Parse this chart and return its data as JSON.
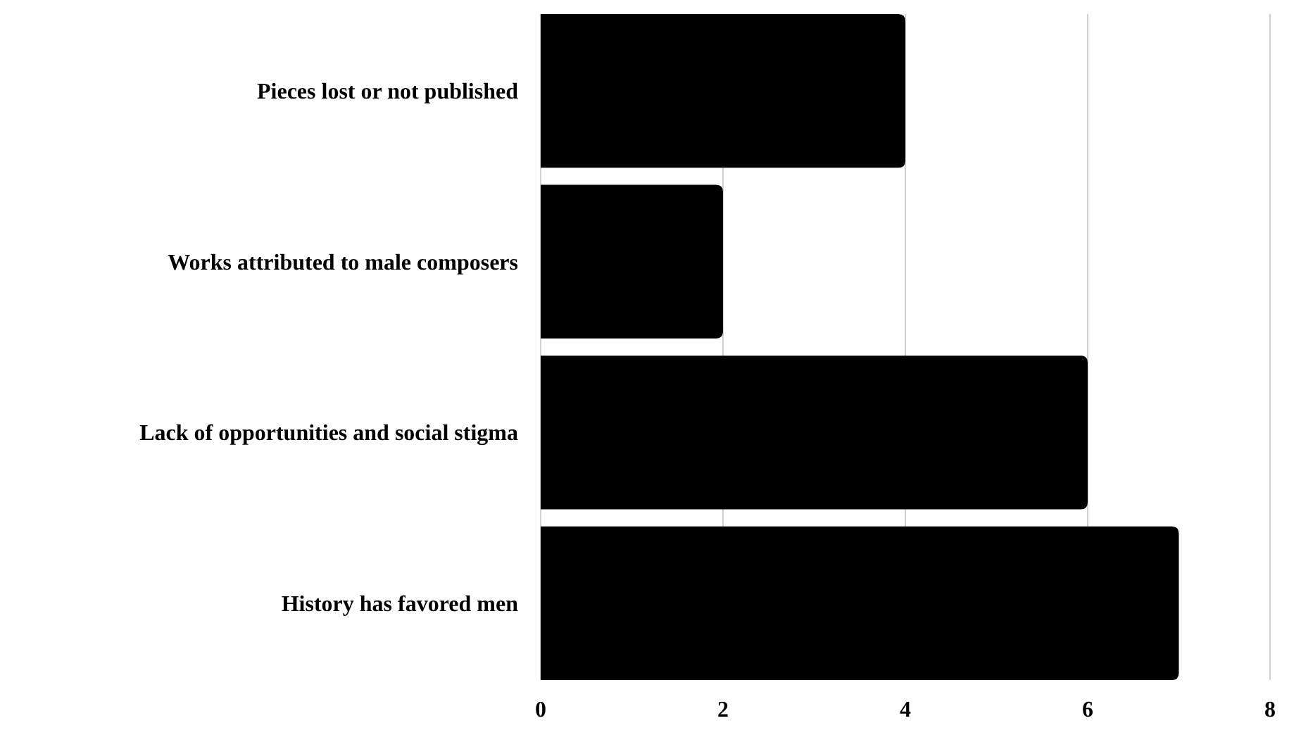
{
  "chart_data": {
    "type": "bar",
    "orientation": "horizontal",
    "categories": [
      "Pieces lost or not published",
      "Works attributed to male composers",
      "Lack of opportunities and social stigma",
      "History has favored men"
    ],
    "values": [
      4,
      2,
      6,
      7
    ],
    "color": "#000000",
    "xlim": [
      0,
      8
    ],
    "xticks": [
      0,
      2,
      4,
      6,
      8
    ],
    "grid": "x"
  }
}
